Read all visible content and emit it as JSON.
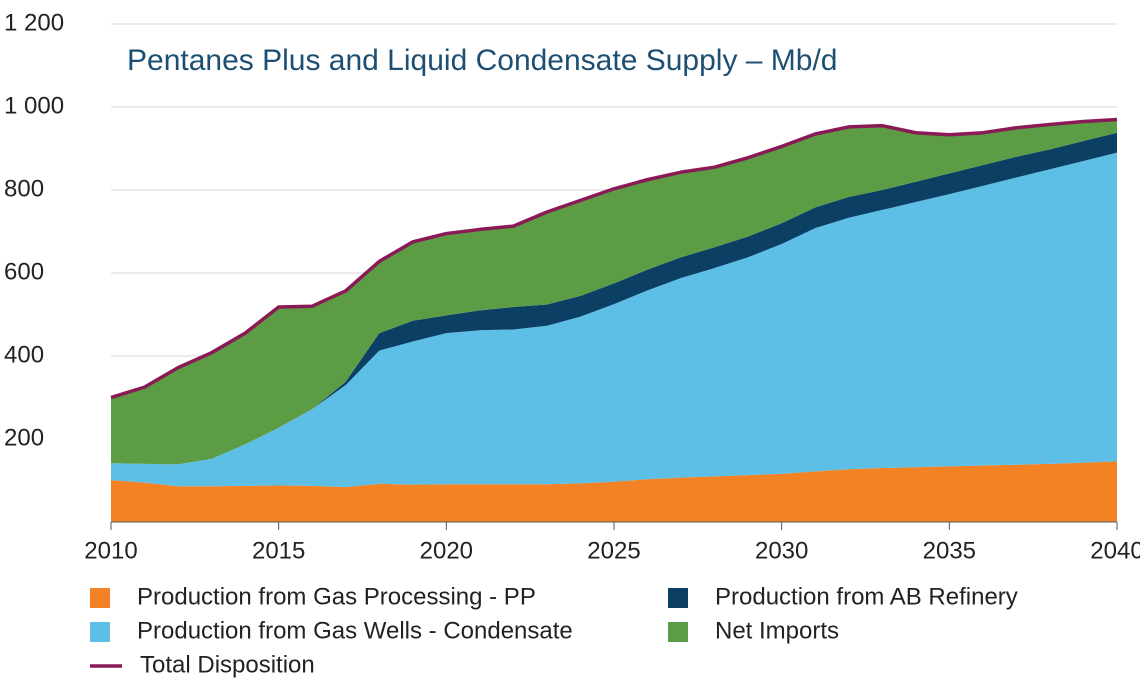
{
  "chart_data": {
    "type": "stacked_area",
    "title": "Pentanes Plus and Liquid Condensate Supply – Mb/d",
    "x": [
      2010,
      2011,
      2012,
      2013,
      2014,
      2015,
      2016,
      2017,
      2018,
      2019,
      2020,
      2021,
      2022,
      2023,
      2024,
      2025,
      2026,
      2027,
      2028,
      2029,
      2030,
      2031,
      2032,
      2033,
      2034,
      2035,
      2036,
      2037,
      2038,
      2039,
      2040
    ],
    "series": [
      {
        "name": "Production from Gas Processing - PP",
        "color": "#f28223",
        "type": "area",
        "values": [
          101,
          95,
          86,
          86,
          87,
          88,
          87,
          84,
          92,
          90,
          91,
          91,
          91,
          91,
          93,
          97,
          103,
          107,
          110,
          113,
          116,
          122,
          127,
          130,
          132,
          134,
          136,
          138,
          140,
          143,
          146
        ]
      },
      {
        "name": "Production from Gas Wells - Condensate",
        "color": "#5dbfe6",
        "type": "area",
        "values": [
          41,
          45,
          53,
          66,
          100,
          139,
          185,
          246,
          321,
          345,
          364,
          371,
          373,
          382,
          402,
          428,
          455,
          481,
          502,
          525,
          554,
          586,
          606,
          622,
          639,
          656,
          674,
          692,
          710,
          727,
          744
        ]
      },
      {
        "name": "Production from AB Refinery",
        "color": "#0b3f63",
        "type": "area",
        "values": [
          0,
          0,
          0,
          0,
          0,
          0,
          0,
          8,
          42,
          50,
          43,
          48,
          54,
          51,
          50,
          50,
          50,
          50,
          50,
          50,
          50,
          50,
          50,
          48,
          49,
          50,
          50,
          50,
          48,
          48,
          48
        ]
      },
      {
        "name": "Net Imports",
        "color": "#5b9c45",
        "type": "area",
        "values": [
          158,
          185,
          233,
          256,
          268,
          291,
          248,
          219,
          173,
          190,
          197,
          195,
          195,
          223,
          230,
          228,
          217,
          205,
          193,
          190,
          185,
          177,
          169,
          155,
          118,
          93,
          78,
          70,
          60,
          47,
          32
        ]
      },
      {
        "name": "Total Disposition",
        "color": "#8a1a55",
        "type": "line",
        "values": [
          300,
          325,
          372,
          408,
          455,
          518,
          520,
          557,
          628,
          675,
          695,
          705,
          713,
          747,
          775,
          803,
          825,
          843,
          855,
          878,
          905,
          935,
          952,
          955,
          938,
          933,
          938,
          950,
          958,
          965,
          970
        ]
      }
    ],
    "xlim": [
      2010,
      2040
    ],
    "xticks": [
      2010,
      2015,
      2020,
      2025,
      2030,
      2035,
      2040
    ],
    "ylim": [
      0,
      1200
    ],
    "yticks": [
      200,
      400,
      600,
      800,
      {
        "value": 1000,
        "label": "1 000"
      },
      {
        "value": 1200,
        "label": "1 200"
      }
    ],
    "grid": true
  }
}
